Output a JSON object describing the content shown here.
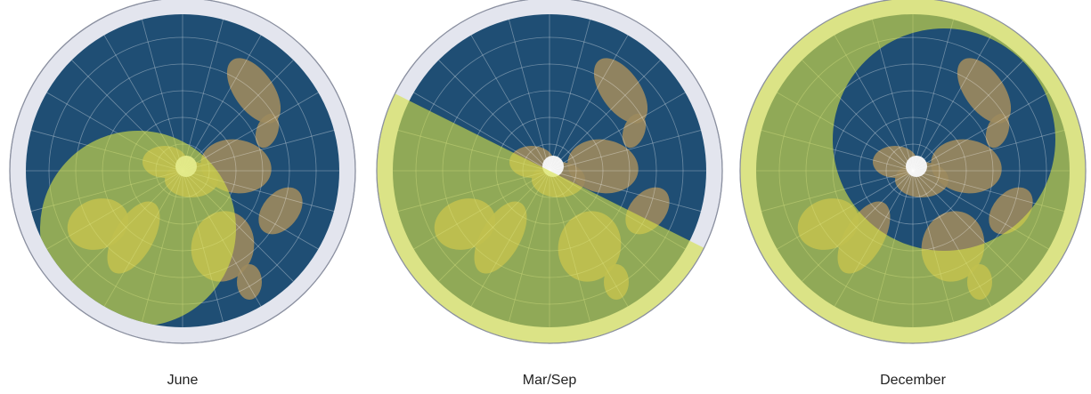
{
  "panels": [
    {
      "label": "June"
    },
    {
      "label": "Mar/Sep"
    },
    {
      "label": "December"
    }
  ]
}
